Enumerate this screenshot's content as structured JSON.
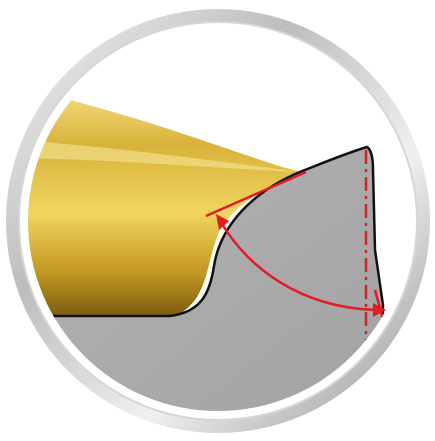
{
  "colors": {
    "background": "#ffffff",
    "ring_light": "#f4f4f4",
    "ring_mid": "#c9c9c9",
    "ring_dark": "#8f8f8f",
    "gold_light": "#f3e07a",
    "gold_mid": "#d9b437",
    "gold_dark": "#8a6a12",
    "tool_gray": "#a9a9a9",
    "outline": "#111111",
    "annotation_red": "#e31b23"
  }
}
